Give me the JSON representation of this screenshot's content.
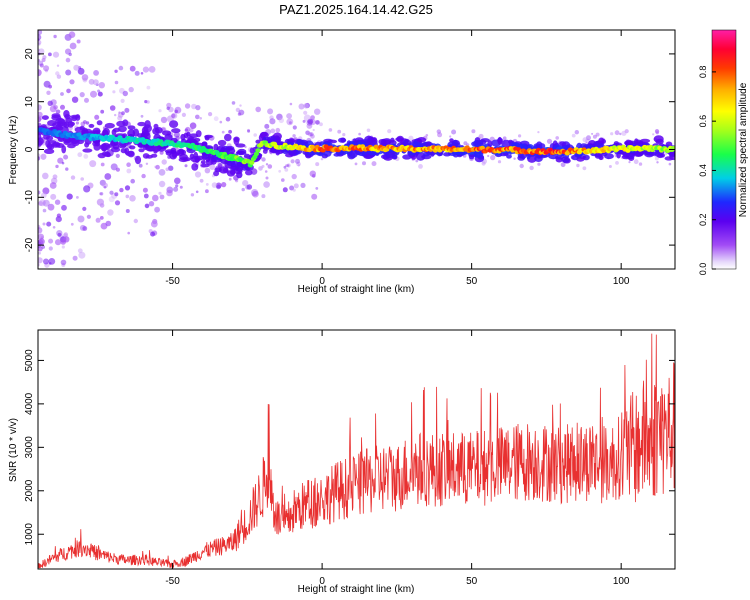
{
  "title": "PAZ1.2025.164.14.42.G25",
  "chart_data": [
    {
      "type": "heatmap",
      "xlabel": "Height of straight line (km)",
      "ylabel": "Frequency (Hz)",
      "xlim": [
        -95,
        118
      ],
      "ylim": [
        -25,
        25
      ],
      "xticks": [
        -50,
        0,
        50,
        100
      ],
      "yticks": [
        -20,
        -10,
        0,
        10,
        20
      ],
      "colorbar": {
        "label": "Normalized spectral amplitude",
        "range": [
          0,
          0.97
        ],
        "ticks": [
          0.0,
          0.2,
          0.4,
          0.6,
          0.8
        ],
        "colormap": "rainbow (violet-blue-cyan-green-yellow-orange-red-magenta)"
      },
      "ridge_frequency_hz": {
        "x": [
          -95,
          -85,
          -75,
          -65,
          -55,
          -45,
          -35,
          -28,
          -24,
          -20,
          -15,
          -10,
          -5,
          0,
          10,
          20,
          30,
          40,
          50,
          60,
          70,
          80,
          90,
          100,
          110,
          118
        ],
        "y": [
          4,
          3,
          2.5,
          2,
          1.5,
          1,
          -1,
          -2,
          -3,
          1.5,
          0.8,
          0.5,
          0.3,
          0.2,
          0.3,
          0.2,
          0.1,
          0.1,
          0.0,
          0.0,
          -0.3,
          -0.5,
          -0.2,
          0.1,
          0.3,
          0.0
        ]
      },
      "ridge_amplitude": {
        "x": [
          -95,
          -80,
          -60,
          -40,
          -30,
          -20,
          -10,
          0,
          20,
          40,
          50,
          70,
          75,
          90,
          110,
          118
        ],
        "y": [
          0.15,
          0.2,
          0.3,
          0.35,
          0.45,
          0.5,
          0.6,
          0.85,
          0.75,
          0.75,
          0.85,
          0.8,
          0.9,
          0.7,
          0.55,
          0.5
        ]
      }
    },
    {
      "type": "line",
      "xlabel": "Height of straight line (km)",
      "ylabel": "SNR (10 * v/v)",
      "xlim": [
        -95,
        118
      ],
      "ylim": [
        200,
        5700
      ],
      "xticks": [
        -50,
        0,
        50,
        100
      ],
      "yticks": [
        1000,
        2000,
        3000,
        4000,
        5000
      ],
      "color": "#e83030",
      "series": [
        {
          "x": [
            -95,
            -90,
            -85,
            -80,
            -75,
            -70,
            -65,
            -60,
            -55,
            -50,
            -45,
            -40,
            -35,
            -30,
            -25,
            -22,
            -20,
            -18,
            -16,
            -14,
            -12,
            -10,
            -5,
            0,
            5,
            10,
            15,
            20,
            25,
            30,
            40,
            50,
            60,
            70,
            80,
            90,
            95,
            100,
            105,
            108,
            110,
            112,
            115,
            118
          ],
          "y": [
            250,
            450,
            600,
            700,
            550,
            450,
            400,
            420,
            350,
            300,
            400,
            600,
            700,
            800,
            1300,
            1700,
            2000,
            2500,
            1500,
            1300,
            1200,
            1500,
            1700,
            1800,
            2000,
            2100,
            2200,
            2300,
            2300,
            2500,
            2500,
            2500,
            2600,
            2700,
            2600,
            2700,
            2600,
            2800,
            3000,
            3200,
            3000,
            3400,
            3300,
            3500
          ]
        }
      ]
    }
  ]
}
